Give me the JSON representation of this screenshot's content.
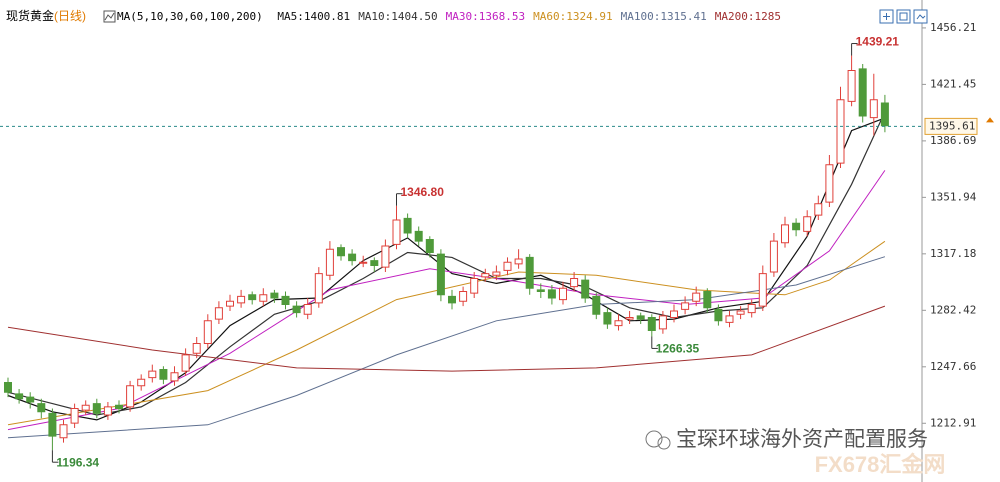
{
  "chart_data": {
    "type": "candlestick",
    "title": "现货黄金",
    "subtitle": "(日线)",
    "indicator": "MA(5,10,30,60,100,200)",
    "ylim": [
      1178,
      1458
    ],
    "yticks": [
      1212.91,
      1247.66,
      1282.42,
      1317.18,
      1351.94,
      1386.69,
      1421.45,
      1456.21
    ],
    "up_color": "#e0403a",
    "down_color": "#4f9a3a",
    "candles": {
      "open": [
        1238,
        1231,
        1229,
        1225,
        1219,
        1204,
        1213,
        1221,
        1225,
        1218,
        1224,
        1223,
        1236,
        1241,
        1246,
        1239,
        1245,
        1256,
        1262,
        1277,
        1285,
        1287,
        1292,
        1288,
        1293,
        1291,
        1285,
        1280,
        1287,
        1304,
        1321,
        1317,
        1312,
        1313,
        1309,
        1323,
        1339,
        1331,
        1326,
        1317,
        1291,
        1288,
        1293,
        1303,
        1304,
        1307,
        1311,
        1315,
        1295,
        1295,
        1289,
        1297,
        1301,
        1291,
        1281,
        1273,
        1277,
        1279,
        1278,
        1271,
        1278,
        1283,
        1288,
        1294,
        1283,
        1275,
        1280,
        1281,
        1285,
        1306,
        1324,
        1336,
        1331,
        1341,
        1349,
        1373,
        1411,
        1431,
        1401,
        1410
      ],
      "high": [
        1241,
        1234,
        1232,
        1228,
        1222,
        1215,
        1225,
        1227,
        1228,
        1226,
        1227,
        1239,
        1243,
        1249,
        1248,
        1248,
        1259,
        1266,
        1280,
        1288,
        1292,
        1295,
        1294,
        1296,
        1295,
        1294,
        1288,
        1290,
        1309,
        1325,
        1323,
        1320,
        1316,
        1315,
        1326,
        1346.8,
        1342,
        1334,
        1328,
        1320,
        1295,
        1297,
        1306,
        1308,
        1310,
        1315,
        1320,
        1317,
        1299,
        1298,
        1300,
        1306,
        1304,
        1293,
        1284,
        1280,
        1282,
        1281,
        1280,
        1282,
        1286,
        1291,
        1297,
        1296,
        1286,
        1282,
        1285,
        1289,
        1310,
        1330,
        1340,
        1339,
        1344,
        1353,
        1378,
        1420,
        1439.21,
        1434,
        1428,
        1415
      ],
      "low": [
        1229,
        1225,
        1222,
        1216,
        1196.34,
        1201,
        1210,
        1218,
        1216,
        1215,
        1219,
        1220,
        1233,
        1238,
        1237,
        1236,
        1242,
        1253,
        1259,
        1274,
        1282,
        1284,
        1286,
        1285,
        1287,
        1283,
        1278,
        1277,
        1284,
        1301,
        1313,
        1310,
        1309,
        1306,
        1306,
        1320,
        1327,
        1322,
        1315,
        1288,
        1283,
        1285,
        1290,
        1300,
        1301,
        1304,
        1308,
        1292,
        1290,
        1286,
        1286,
        1294,
        1287,
        1277,
        1271,
        1270,
        1274,
        1274,
        1266.35,
        1268,
        1275,
        1280,
        1285,
        1281,
        1273,
        1272,
        1277,
        1278,
        1282,
        1303,
        1321,
        1328,
        1328,
        1338,
        1346,
        1370,
        1408,
        1398,
        1390,
        1392
      ],
      "close": [
        1232,
        1228,
        1226,
        1220,
        1205,
        1212,
        1222,
        1224,
        1219,
        1223,
        1222,
        1236,
        1240,
        1245,
        1240,
        1244,
        1255,
        1262,
        1276,
        1284,
        1288,
        1291,
        1289,
        1292,
        1290,
        1286,
        1281,
        1286,
        1305,
        1320,
        1316,
        1313,
        1312,
        1310,
        1322,
        1338,
        1330,
        1325,
        1318,
        1292,
        1287,
        1294,
        1302,
        1305,
        1306,
        1312,
        1314,
        1296,
        1294,
        1290,
        1296,
        1302,
        1290,
        1280,
        1274,
        1276,
        1278,
        1277,
        1270,
        1279,
        1282,
        1287,
        1293,
        1284,
        1276,
        1279,
        1282,
        1286,
        1305,
        1325,
        1335,
        1332,
        1340,
        1348,
        1372,
        1412,
        1430,
        1402,
        1412,
        1396
      ]
    },
    "series": [
      {
        "name": "MA5",
        "label": "MA5:1400.81",
        "color": "#111111",
        "x": [
          0,
          4,
          8,
          12,
          16,
          20,
          24,
          28,
          32,
          36,
          40,
          44,
          48,
          52,
          56,
          60,
          64,
          68,
          72,
          76,
          79
        ],
        "values": [
          1230,
          1220,
          1215,
          1226,
          1244,
          1273,
          1289,
          1290,
          1313,
          1327,
          1305,
          1299,
          1304,
          1292,
          1276,
          1277,
          1284,
          1288,
          1328,
          1393,
          1400.81
        ]
      },
      {
        "name": "MA10",
        "label": "MA10:1404.50",
        "color": "#333333",
        "x": [
          0,
          4,
          8,
          12,
          16,
          20,
          24,
          28,
          32,
          36,
          40,
          44,
          48,
          52,
          56,
          60,
          64,
          68,
          72,
          76,
          79
        ],
        "values": [
          1232,
          1225,
          1218,
          1223,
          1238,
          1260,
          1280,
          1288,
          1302,
          1318,
          1315,
          1302,
          1302,
          1297,
          1284,
          1278,
          1282,
          1284,
          1310,
          1360,
          1404.5
        ]
      },
      {
        "name": "MA30",
        "label": "MA30:1368.53",
        "color": "#c020c0",
        "x": [
          0,
          10,
          20,
          29,
          38,
          46,
          53,
          61,
          68,
          74,
          79
        ],
        "values": [
          1209,
          1222,
          1256,
          1295,
          1308,
          1300,
          1292,
          1286,
          1290,
          1319,
          1368.53
        ]
      },
      {
        "name": "MA60",
        "label": "MA60:1324.91",
        "color": "#cc9020",
        "x": [
          0,
          18,
          26,
          35,
          46,
          53,
          62,
          70,
          74,
          79
        ],
        "values": [
          1212,
          1233,
          1258,
          1289,
          1306,
          1304,
          1295,
          1292,
          1301,
          1324.91
        ]
      },
      {
        "name": "MA100",
        "label": "MA100:1315.41",
        "color": "#5f7090",
        "x": [
          0,
          18,
          26,
          35,
          44,
          53,
          62,
          71,
          79
        ],
        "values": [
          1204,
          1212,
          1230,
          1255,
          1276,
          1286,
          1289,
          1298,
          1315.41
        ]
      },
      {
        "name": "MA200",
        "label": "MA200:1285",
        "color": "#a03030",
        "x": [
          0,
          13,
          26,
          40,
          53,
          67,
          79
        ],
        "values": [
          1272,
          1258,
          1247,
          1245,
          1247,
          1255,
          1285
        ]
      }
    ],
    "last_price": 1395.61,
    "annotations": [
      {
        "index": 76,
        "value": 1439.21,
        "kind": "high"
      },
      {
        "index": 35,
        "value": 1346.8,
        "label": "1346.80",
        "kind": "high"
      },
      {
        "index": 58,
        "value": 1266.35,
        "kind": "low"
      },
      {
        "index": 4,
        "value": 1196.34,
        "kind": "low"
      }
    ],
    "watermark": "宝琛环球海外资产配置服务",
    "watermark2": "FX678汇金网"
  }
}
